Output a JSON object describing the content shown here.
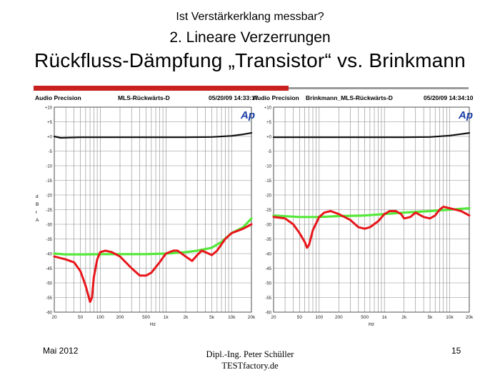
{
  "slide": {
    "title_line1": "Ist Verstärkerklang messbar?",
    "title_line2": "2. Lineare Verzerrungen",
    "title_line3": "Rückfluss-Dämpfung „Transistor“ vs. Brinkmann",
    "footer_date": "Mai 2012",
    "footer_author": "Dipl.-Ing. Peter Schüller",
    "footer_company": "TESTfactory.de",
    "page_number": "15",
    "accent_color": "#c8211f"
  },
  "chart_data": [
    {
      "type": "line",
      "header_left": "Audio Precision",
      "title": "MLS-Rückwärts-D",
      "timestamp": "05/20/09 14:33:17",
      "logo": "Ap",
      "ylabel": [
        "d",
        "B",
        "r",
        "A"
      ],
      "xlabel": "Hz",
      "x_scale": "log",
      "xlim": [
        20,
        20000
      ],
      "ylim": [
        -60,
        10
      ],
      "y_ticks": [
        "+10",
        "+5",
        "+0",
        "-5",
        "-10",
        "-15",
        "-20",
        "-25",
        "-30",
        "-35",
        "-40",
        "-45",
        "-50",
        "-55",
        "-60"
      ],
      "x_ticks": [
        "20",
        "50",
        "100",
        "200",
        "500",
        "1k",
        "2k",
        "5k",
        "10k",
        "20k"
      ],
      "grid": true,
      "series": [
        {
          "color": "#111111",
          "x": [
            20,
            25,
            50,
            100,
            200,
            500,
            1000,
            2000,
            5000,
            10000,
            15000,
            20000
          ],
          "values": [
            0,
            -0.5,
            -0.3,
            -0.3,
            -0.3,
            -0.3,
            -0.3,
            -0.3,
            -0.2,
            0.2,
            0.7,
            1.2
          ]
        },
        {
          "color": "#55e83a",
          "x": [
            20,
            30,
            50,
            100,
            200,
            500,
            1000,
            2000,
            3000,
            5000,
            7000,
            10000,
            15000,
            20000
          ],
          "values": [
            -40,
            -40.3,
            -40.3,
            -40.2,
            -40.2,
            -40.2,
            -40,
            -39.5,
            -39,
            -38,
            -36,
            -33,
            -31,
            -28
          ]
        },
        {
          "color": "#e8161b",
          "x": [
            20,
            30,
            40,
            50,
            60,
            70,
            75,
            80,
            90,
            100,
            120,
            150,
            200,
            300,
            400,
            500,
            600,
            800,
            1000,
            1300,
            1500,
            2000,
            2500,
            3000,
            3500,
            4000,
            5000,
            6000,
            8000,
            10000,
            15000,
            20000
          ],
          "values": [
            -41,
            -42,
            -43,
            -46,
            -51,
            -56.5,
            -55,
            -48,
            -42,
            -39.5,
            -39,
            -39.5,
            -41,
            -45,
            -47.5,
            -47.5,
            -46.5,
            -43,
            -40,
            -39,
            -39,
            -41,
            -42.5,
            -40.5,
            -39,
            -39.5,
            -40.5,
            -39,
            -35,
            -33,
            -31.5,
            -30
          ]
        }
      ]
    },
    {
      "type": "line",
      "header_left": "Audio Precision",
      "title": "Brinkmann_MLS-Rückwärts-D",
      "timestamp": "05/20/09 14:34:10",
      "logo": "Ap",
      "ylabel": [],
      "xlabel": "Hz",
      "x_scale": "log",
      "xlim": [
        20,
        20000
      ],
      "ylim": [
        -60,
        10
      ],
      "y_ticks": [
        "+10",
        "+5",
        "+0",
        "-5",
        "-10",
        "-15",
        "-20",
        "-25",
        "-30",
        "-35",
        "-40",
        "-45",
        "-50",
        "-55",
        "-60"
      ],
      "x_ticks": [
        "20",
        "50",
        "100",
        "200",
        "500",
        "1k",
        "2k",
        "5k",
        "10k",
        "20k"
      ],
      "grid": true,
      "series": [
        {
          "color": "#111111",
          "x": [
            20,
            50,
            100,
            200,
            500,
            1000,
            2000,
            5000,
            10000,
            15000,
            20000
          ],
          "values": [
            -0.3,
            -0.3,
            -0.3,
            -0.3,
            -0.3,
            -0.3,
            -0.3,
            -0.2,
            0.3,
            0.8,
            1.2
          ]
        },
        {
          "color": "#55e83a",
          "x": [
            20,
            50,
            100,
            200,
            500,
            1000,
            2000,
            5000,
            10000,
            20000
          ],
          "values": [
            -27,
            -27.5,
            -27.5,
            -27.2,
            -27,
            -26.5,
            -26,
            -25.5,
            -25,
            -24.5
          ]
        },
        {
          "color": "#e8161b",
          "x": [
            20,
            30,
            40,
            50,
            60,
            65,
            70,
            80,
            100,
            120,
            150,
            200,
            300,
            400,
            500,
            600,
            800,
            1000,
            1200,
            1500,
            1800,
            2000,
            2500,
            3000,
            4000,
            5000,
            6000,
            7000,
            8000,
            10000,
            15000,
            20000
          ],
          "values": [
            -27.5,
            -28,
            -30,
            -33,
            -36,
            -38,
            -37,
            -32,
            -27.5,
            -26,
            -25.5,
            -26.5,
            -28.5,
            -31,
            -31.5,
            -31,
            -29,
            -26.5,
            -25.5,
            -25.5,
            -26.5,
            -28,
            -27.5,
            -26,
            -27.5,
            -28,
            -27,
            -25,
            -24,
            -24.5,
            -25.5,
            -27
          ]
        }
      ]
    }
  ]
}
